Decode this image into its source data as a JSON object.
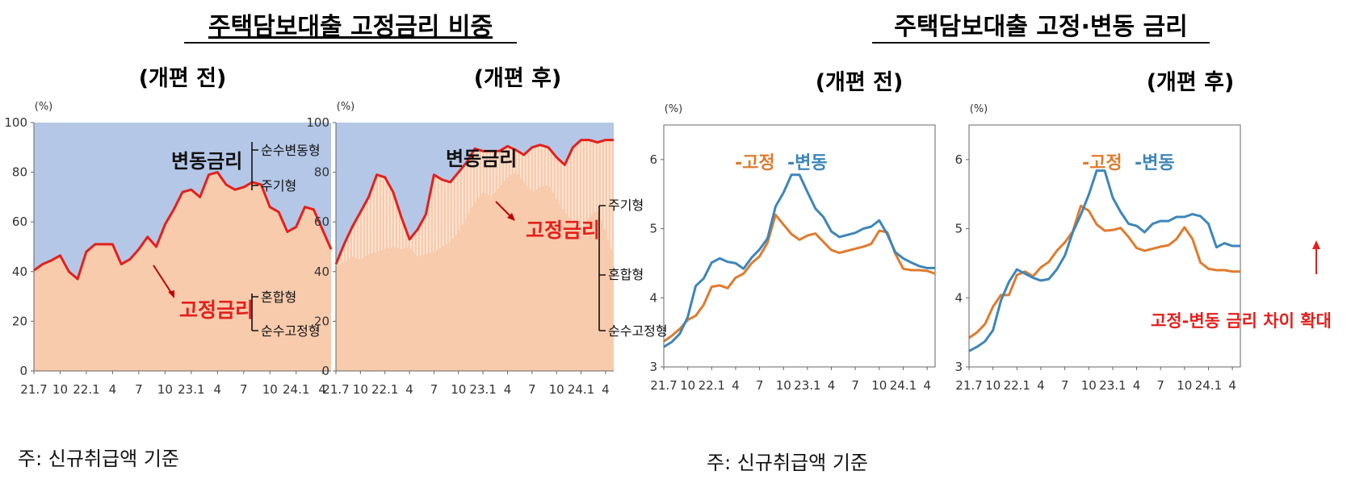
{
  "titles": {
    "left_section": "주택담보대출 고정금리 비중",
    "right_section": "주택담보대출 고정·변동 금리",
    "before": "(개편 전)",
    "after": "(개편 후)"
  },
  "notes": {
    "left": "주: 신규취급액 기준",
    "right": "주: 신규취급액 기준"
  },
  "annotations": {
    "variable_rate": "변동금리",
    "fixed_rate": "고정금리",
    "pure_variable": "순수변동형",
    "periodic": "주기형",
    "mixed": "혼합형",
    "pure_fixed": "순수고정형",
    "gap_widened": "고정-변동 금리 차이 확대"
  },
  "legend": {
    "fixed": "-고정",
    "variable": "-변동"
  },
  "colors": {
    "variable_area": "#b4c7e7",
    "fixed_area": "#f8cbad",
    "fixed_area_light": "#fde9db",
    "share_line": "#e3201c",
    "fixed_rate_line": "#e07b2e",
    "variable_rate_line": "#3d86b9"
  },
  "chart_data": [
    {
      "type": "area",
      "x": [
        "21.7",
        "21.8",
        "21.9",
        "21.10",
        "21.11",
        "21.12",
        "22.1",
        "22.2",
        "22.3",
        "22.4",
        "22.5",
        "22.6",
        "22.7",
        "22.8",
        "22.9",
        "22.10",
        "22.11",
        "22.12",
        "23.1",
        "23.2",
        "23.3",
        "23.4",
        "23.5",
        "23.6",
        "23.7",
        "23.8",
        "23.9",
        "23.10",
        "23.11",
        "23.12",
        "24.1",
        "24.2",
        "24.3",
        "24.4",
        "24.5"
      ],
      "xticks": [
        "21.7",
        "10",
        "22.1",
        "4",
        "7",
        "10",
        "23.1",
        "4",
        "7",
        "10",
        "24.1",
        "4"
      ],
      "ylim": [
        0,
        100
      ],
      "yticks": [
        0,
        20,
        40,
        60,
        80,
        100
      ],
      "yunit": "(%)",
      "series": [
        {
          "values": [
            40.5,
            43,
            44.5,
            46.5,
            40,
            37,
            48,
            51,
            51,
            51,
            43,
            45,
            49,
            54,
            50,
            59,
            65,
            72,
            73,
            70,
            79,
            80,
            75,
            73,
            74,
            76,
            75,
            66,
            64,
            56,
            58,
            66,
            65,
            57,
            49
          ]
        }
      ]
    },
    {
      "type": "area",
      "x": [
        "21.7",
        "21.8",
        "21.9",
        "21.10",
        "21.11",
        "21.12",
        "22.1",
        "22.2",
        "22.3",
        "22.4",
        "22.5",
        "22.6",
        "22.7",
        "22.8",
        "22.9",
        "22.10",
        "22.11",
        "22.12",
        "23.1",
        "23.2",
        "23.3",
        "23.4",
        "23.5",
        "23.6",
        "23.7",
        "23.8",
        "23.9",
        "23.10",
        "23.11",
        "23.12",
        "24.1",
        "24.2",
        "24.3",
        "24.4",
        "24.5"
      ],
      "xticks": [
        "21.7",
        "10",
        "22.1",
        "4",
        "7",
        "10",
        "23.1",
        "4",
        "7",
        "10",
        "24.1",
        "4"
      ],
      "ylim": [
        0,
        100
      ],
      "yticks": [
        0,
        20,
        40,
        60,
        80,
        100
      ],
      "yunit": "(%)",
      "series": [
        {
          "values": [
            43,
            51,
            58,
            64,
            70,
            79,
            78,
            72,
            62,
            53,
            57,
            63,
            79,
            77,
            76,
            80,
            84,
            89.5,
            88.5,
            88.5,
            88.5,
            90.5,
            89,
            87,
            90,
            91,
            90,
            86,
            83,
            90,
            93,
            93,
            92,
            93,
            93
          ]
        },
        {
          "values": [
            42,
            44,
            46,
            45,
            47,
            48,
            49,
            50,
            49,
            50,
            46,
            47,
            48,
            50,
            52,
            56,
            62,
            68,
            72,
            70,
            74,
            78,
            80,
            76,
            72,
            74,
            75,
            69,
            64,
            60,
            56,
            62,
            65,
            56,
            45
          ]
        }
      ]
    },
    {
      "type": "line",
      "x": [
        "21.7",
        "21.8",
        "21.9",
        "21.10",
        "21.11",
        "21.12",
        "22.1",
        "22.2",
        "22.3",
        "22.4",
        "22.5",
        "22.6",
        "22.7",
        "22.8",
        "22.9",
        "22.10",
        "22.11",
        "22.12",
        "23.1",
        "23.2",
        "23.3",
        "23.4",
        "23.5",
        "23.6",
        "23.7",
        "23.8",
        "23.9",
        "23.10",
        "23.11",
        "23.12",
        "24.1",
        "24.2",
        "24.3",
        "24.4",
        "24.5"
      ],
      "xticks": [
        "21.7",
        "10",
        "22.1",
        "4",
        "7",
        "10",
        "23.1",
        "4",
        "7",
        "10",
        "24.1",
        "4"
      ],
      "ylim": [
        3,
        6.5
      ],
      "yticks": [
        3,
        4,
        5,
        6
      ],
      "yunit": "(%)",
      "series": [
        {
          "name": "고정",
          "values": [
            3.37,
            3.45,
            3.55,
            3.68,
            3.74,
            3.9,
            4.16,
            4.18,
            4.14,
            4.29,
            4.35,
            4.5,
            4.6,
            4.8,
            5.2,
            5.06,
            4.92,
            4.84,
            4.9,
            4.93,
            4.81,
            4.69,
            4.65,
            4.68,
            4.71,
            4.74,
            4.78,
            4.97,
            4.95,
            4.64,
            4.42,
            4.4,
            4.4,
            4.39,
            4.35
          ]
        },
        {
          "name": "변동",
          "values": [
            3.29,
            3.36,
            3.48,
            3.72,
            4.17,
            4.28,
            4.51,
            4.57,
            4.52,
            4.5,
            4.42,
            4.58,
            4.7,
            4.86,
            5.32,
            5.52,
            5.78,
            5.78,
            5.53,
            5.29,
            5.17,
            4.96,
            4.88,
            4.91,
            4.94,
            5.0,
            5.03,
            5.12,
            4.92,
            4.66,
            4.57,
            4.51,
            4.46,
            4.43,
            4.43
          ]
        }
      ]
    },
    {
      "type": "line",
      "x": [
        "21.7",
        "21.8",
        "21.9",
        "21.10",
        "21.11",
        "21.12",
        "22.1",
        "22.2",
        "22.3",
        "22.4",
        "22.5",
        "22.6",
        "22.7",
        "22.8",
        "22.9",
        "22.10",
        "22.11",
        "22.12",
        "23.1",
        "23.2",
        "23.3",
        "23.4",
        "23.5",
        "23.6",
        "23.7",
        "23.8",
        "23.9",
        "23.10",
        "23.11",
        "23.12",
        "24.1",
        "24.2",
        "24.3",
        "24.4",
        "24.5"
      ],
      "xticks": [
        "21.7",
        "10",
        "22.1",
        "4",
        "7",
        "10",
        "23.1",
        "4",
        "7",
        "10",
        "24.1",
        "4"
      ],
      "ylim": [
        3,
        6.5
      ],
      "yticks": [
        3,
        4,
        5,
        6
      ],
      "yunit": "(%)",
      "series": [
        {
          "name": "고정",
          "values": [
            3.42,
            3.5,
            3.62,
            3.87,
            4.04,
            4.04,
            4.33,
            4.38,
            4.31,
            4.44,
            4.52,
            4.68,
            4.8,
            4.96,
            5.33,
            5.26,
            5.06,
            4.97,
            4.98,
            5.01,
            4.88,
            4.72,
            4.68,
            4.71,
            4.74,
            4.76,
            4.85,
            5.02,
            4.85,
            4.51,
            4.42,
            4.4,
            4.4,
            4.38,
            4.38
          ]
        },
        {
          "name": "변동",
          "values": [
            3.23,
            3.29,
            3.37,
            3.53,
            3.96,
            4.23,
            4.41,
            4.35,
            4.29,
            4.25,
            4.27,
            4.41,
            4.61,
            4.95,
            5.2,
            5.49,
            5.84,
            5.84,
            5.45,
            5.24,
            5.07,
            5.04,
            4.95,
            5.07,
            5.11,
            5.11,
            5.17,
            5.17,
            5.21,
            5.18,
            5.07,
            4.73,
            4.79,
            4.75,
            4.75
          ]
        }
      ]
    }
  ]
}
